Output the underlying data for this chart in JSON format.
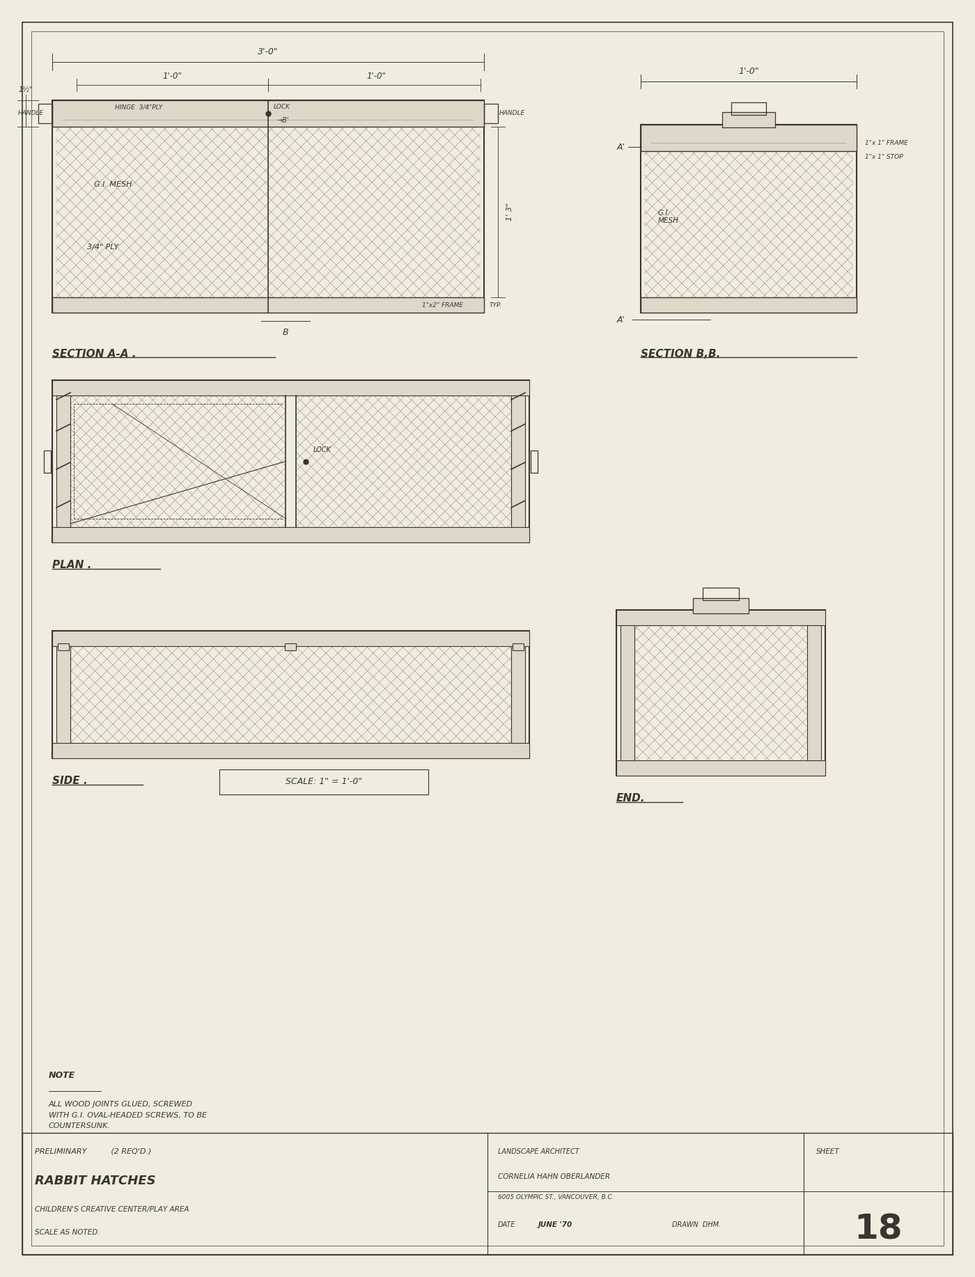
{
  "bg_color": "#f0ece0",
  "paper_color": "#ede8d8",
  "line_color": "#3a3530",
  "dim_color": "#3a3530",
  "hatch_color": "#8a8070",
  "fill_light": "#ddd8c8",
  "title_block": {
    "preliminary": "PRELIMINARY          (2 REQ'D.)",
    "title": "RABBIT HATCHES",
    "subtitle": "CHILDREN'S CREATIVE CENTER/PLAY AREA",
    "scale": "SCALE AS NOTED.",
    "landscape_arch": "LANDSCAPE ARCHITECT",
    "firm": "CORNELIA HAHN OBERLANDER",
    "address": "6005 OLYMPIC ST., VANCOUVER, B.C.",
    "date_label": "DATE",
    "date": "JUNE '70",
    "drawn": "DRAWN  DHM.",
    "sheet_label": "SHEET",
    "sheet_num": "18"
  },
  "section_aa_label": "SECTION A-A .",
  "section_bb_label": "SECTION B,B.",
  "plan_label": "PLAN .",
  "side_label": "SIDE .",
  "scale_label": "SCALE: 1\" = 1'-0\"",
  "end_label": "END.",
  "note_title": "NOTE",
  "note_text": "ALL WOOD JOINTS GLUED, SCREWED\nWITH G.I. OVAL-HEADED SCREWS, TO BE\nCOUNTERSUNK."
}
